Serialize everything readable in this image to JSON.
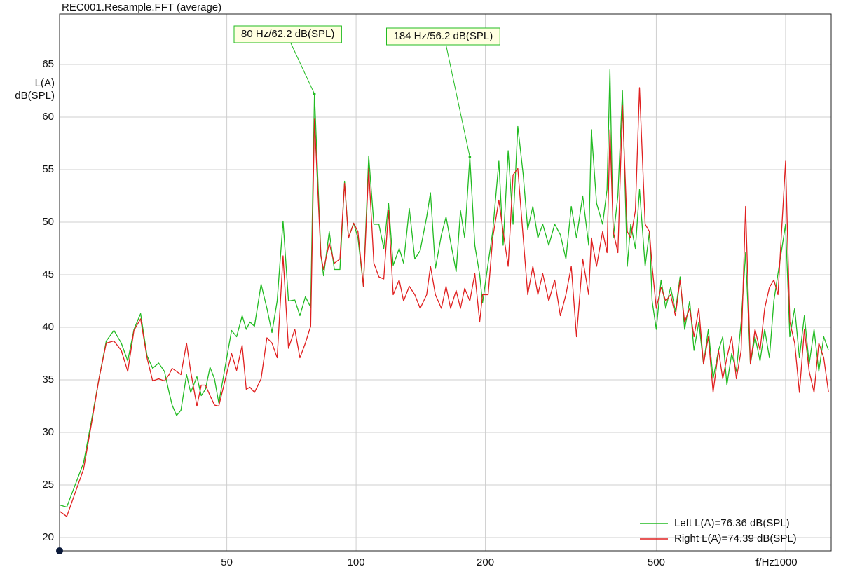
{
  "chart_data": {
    "type": "line",
    "title": "REC001.Resample.FFT (average)",
    "ylabel": "L(A)",
    "yunit": "dB(SPL)",
    "xlabel": "f/Hz",
    "xscale": "log",
    "grid": true,
    "legend": "lower right",
    "xlim": [
      20.4,
      1277
    ],
    "ylim": [
      18.73,
      69.8
    ],
    "xticks": [
      50,
      100,
      200,
      500,
      1000
    ],
    "yticks": [
      20,
      25,
      30,
      35,
      40,
      45,
      50,
      55,
      60,
      65
    ],
    "x": [
      20.4,
      21.2,
      23.2,
      24.2,
      25.2,
      26.2,
      27.3,
      28.4,
      29.4,
      30.4,
      31.5,
      32.6,
      33.6,
      34.7,
      35.8,
      36.7,
      37.3,
      38.2,
      39.1,
      40.3,
      41.2,
      42.6,
      43.6,
      44.6,
      45.7,
      46.8,
      47.9,
      51.3,
      52.7,
      54.3,
      55.5,
      56.6,
      58.0,
      60.1,
      62.0,
      63.7,
      65.5,
      67.6,
      69.6,
      72.0,
      74.0,
      76.2,
      78.4,
      80.0,
      82.8,
      84.0,
      86.6,
      89.0,
      91.7,
      94.0,
      96.0,
      98.7,
      101,
      104,
      107,
      110,
      113,
      116,
      119,
      122,
      126,
      129,
      133,
      137,
      141,
      146,
      149,
      153,
      158,
      162,
      166,
      171,
      175,
      179,
      184,
      189,
      194,
      197,
      203,
      208,
      215,
      220,
      226,
      232,
      238,
      245,
      251,
      258,
      265,
      272,
      281,
      290,
      299,
      308,
      317,
      326,
      337,
      348,
      353,
      363,
      375,
      384,
      390,
      397,
      407,
      417,
      428,
      436,
      447,
      457,
      471,
      482,
      489,
      500,
      513,
      526,
      540,
      554,
      568,
      582,
      598,
      612,
      628,
      644,
      661,
      678,
      698,
      714,
      730,
      749,
      768,
      788,
      807,
      828,
      849,
      872,
      894,
      917,
      939,
      960,
      1000,
      1023,
      1050,
      1077,
      1106,
      1135,
      1165,
      1195,
      1227,
      1259
    ],
    "series": [
      {
        "name": "Left L(A)=76.36 dB(SPL)",
        "color": "#22bb22",
        "values": [
          23.1,
          22.9,
          27.1,
          31.1,
          35.1,
          38.7,
          39.7,
          38.5,
          36.8,
          39.8,
          41.3,
          37.3,
          36.1,
          36.6,
          35.8,
          33.8,
          32.6,
          31.6,
          32.1,
          35.5,
          33.8,
          35.3,
          33.5,
          34.1,
          36.2,
          35.1,
          32.8,
          39.7,
          39.1,
          41.1,
          39.8,
          40.5,
          40.1,
          44.1,
          41.8,
          39.5,
          42.5,
          50.1,
          42.5,
          42.6,
          41.1,
          42.9,
          41.9,
          62.2,
          46.9,
          44.9,
          49.1,
          45.5,
          45.5,
          53.9,
          48.5,
          49.9,
          48.5,
          43.9,
          56.3,
          49.8,
          49.8,
          47.5,
          51.8,
          45.9,
          47.5,
          46.1,
          51.3,
          46.5,
          47.3,
          50.5,
          52.8,
          45.6,
          48.8,
          50.5,
          48.1,
          45.3,
          51.1,
          48.5,
          56.2,
          47.8,
          45.0,
          42.3,
          46.1,
          49.1,
          55.8,
          47.8,
          56.8,
          49.8,
          59.1,
          54.5,
          49.3,
          51.5,
          48.5,
          49.8,
          47.8,
          49.8,
          48.8,
          46.5,
          51.5,
          48.5,
          52.5,
          47.8,
          58.8,
          51.8,
          49.8,
          53.1,
          64.5,
          48.5,
          52.5,
          62.5,
          45.8,
          49.8,
          47.5,
          53.1,
          45.8,
          49.1,
          42.5,
          39.8,
          44.5,
          41.8,
          43.8,
          41.5,
          44.8,
          39.8,
          42.5,
          37.8,
          40.5,
          36.5,
          39.8,
          35.1,
          37.8,
          39.1,
          34.5,
          37.5,
          35.8,
          40.5,
          47.1,
          36.5,
          39.1,
          36.8,
          39.8,
          37.1,
          42.5,
          45.1,
          49.8,
          39.1,
          41.8,
          37.1,
          41.1,
          36.5,
          39.8,
          35.8,
          39.1,
          37.8
        ]
      },
      {
        "name": "Right L(A)=74.39 dB(SPL)",
        "color": "#e02020",
        "values": [
          22.5,
          22.0,
          26.5,
          30.8,
          35.1,
          38.5,
          38.7,
          37.8,
          35.8,
          39.7,
          40.8,
          37.1,
          34.9,
          35.1,
          34.9,
          35.5,
          36.1,
          35.8,
          35.5,
          38.5,
          35.8,
          32.5,
          34.5,
          34.5,
          33.5,
          32.6,
          32.5,
          37.5,
          35.9,
          38.3,
          34.1,
          34.3,
          33.8,
          35.1,
          39.0,
          38.5,
          37.1,
          46.8,
          38.0,
          39.8,
          37.1,
          38.5,
          40.1,
          59.8,
          46.8,
          45.5,
          48.0,
          46.1,
          46.5,
          53.7,
          48.5,
          49.9,
          49.1,
          43.9,
          55.1,
          46.1,
          44.8,
          44.6,
          51.1,
          43.1,
          44.5,
          42.5,
          43.9,
          43.1,
          41.8,
          43.1,
          45.8,
          43.1,
          41.8,
          43.9,
          41.8,
          43.5,
          41.8,
          43.7,
          42.5,
          45.1,
          40.5,
          43.1,
          43.1,
          48.5,
          52.1,
          49.1,
          45.8,
          54.5,
          55.1,
          48.5,
          43.1,
          45.8,
          43.1,
          45.1,
          42.5,
          44.5,
          41.1,
          43.1,
          45.8,
          39.1,
          46.5,
          43.1,
          48.5,
          45.8,
          49.1,
          47.1,
          58.8,
          49.1,
          47.1,
          61.1,
          49.1,
          48.5,
          51.1,
          62.8,
          49.8,
          49.1,
          45.8,
          41.8,
          43.8,
          42.5,
          43.1,
          41.1,
          44.5,
          40.5,
          41.8,
          39.1,
          41.8,
          36.5,
          39.1,
          33.8,
          37.8,
          35.1,
          37.1,
          39.1,
          35.1,
          37.8,
          51.5,
          36.5,
          39.8,
          37.8,
          41.8,
          43.8,
          44.5,
          43.1,
          55.8,
          40.5,
          38.5,
          33.8,
          39.8,
          35.8,
          33.8,
          38.5,
          37.1,
          33.8
        ]
      }
    ],
    "annotations": [
      {
        "text": "80 Hz/62.2 dB(SPL)",
        "x": 80,
        "y": 62.2
      },
      {
        "text": "184 Hz/56.2 dB(SPL)",
        "x": 184,
        "y": 56.2
      }
    ]
  }
}
